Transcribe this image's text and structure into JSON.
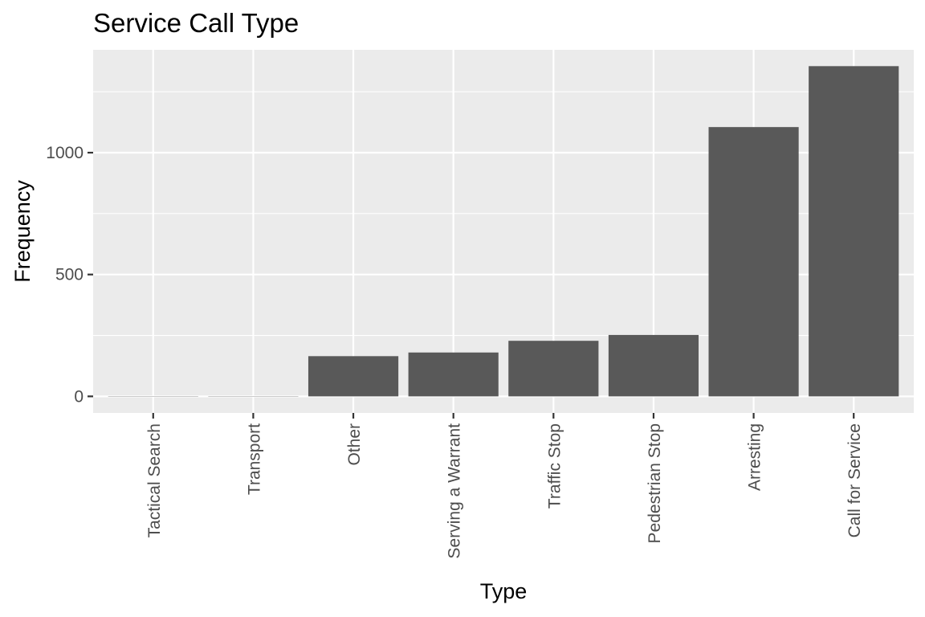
{
  "chart_data": {
    "type": "bar",
    "title": "Service Call Type",
    "xlabel": "Type",
    "ylabel": "Frequency",
    "categories": [
      "Tactical Search",
      "Transport",
      "Other",
      "Serving a Warrant",
      "Traffic Stop",
      "Pedestrian Stop",
      "Arresting",
      "Call for Service"
    ],
    "values": [
      1,
      1,
      165,
      180,
      228,
      252,
      1105,
      1355
    ],
    "yticks": [
      0,
      500,
      1000
    ],
    "ylim": [
      -68,
      1422
    ],
    "grid": true,
    "legend": "none",
    "colors": {
      "panel": "#ebebeb",
      "grid": "#ffffff",
      "bar": "#595959",
      "tick_text": "#4d4d4d",
      "tick_mark": "#333333"
    }
  }
}
